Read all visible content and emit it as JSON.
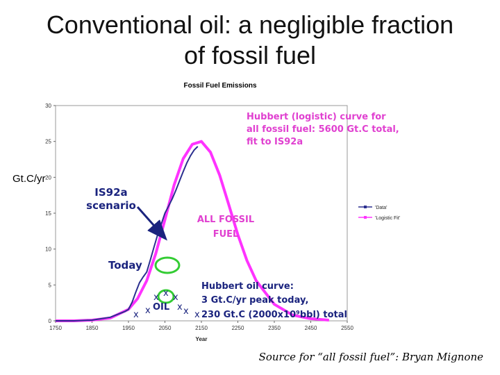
{
  "slide": {
    "title_line1": "Conventional oil: a negligible fraction",
    "title_line2": "of fossil fuel",
    "source": "Source for “all fossil fuel”: Bryan Mignone"
  },
  "chart_data": {
    "type": "line",
    "title": "Fossil Fuel Emissions",
    "xlabel": "Year",
    "ylabel": "Gt.C/yr",
    "xlim": [
      1750,
      2550
    ],
    "ylim": [
      0,
      30
    ],
    "x_ticks": [
      1750,
      1850,
      1950,
      2050,
      2150,
      2250,
      2350,
      2450,
      2550
    ],
    "y_ticks": [
      0,
      5,
      10,
      15,
      20,
      25,
      30
    ],
    "grid": false,
    "legend_position": "right",
    "series": [
      {
        "name": "'Data'",
        "color": "#2b2f8f",
        "x": [
          1750,
          1800,
          1850,
          1900,
          1920,
          1940,
          1950,
          1960,
          1970,
          1980,
          1990,
          2000,
          2010,
          2020,
          2030,
          2040,
          2050,
          2060,
          2070,
          2080,
          2090,
          2100,
          2110,
          2120,
          2130,
          2140
        ],
        "y": [
          0,
          0,
          0.1,
          0.5,
          0.9,
          1.3,
          1.6,
          2.6,
          4.0,
          5.3,
          6.1,
          6.8,
          8.5,
          10.3,
          12.0,
          13.5,
          15.0,
          16.0,
          17.0,
          18.2,
          19.5,
          20.8,
          22.0,
          23.0,
          23.8,
          24.3
        ]
      },
      {
        "name": "'Logistic Fit'",
        "color": "#ff33ff",
        "x": [
          1750,
          1800,
          1850,
          1900,
          1950,
          1975,
          2000,
          2025,
          2050,
          2075,
          2100,
          2125,
          2150,
          2175,
          2200,
          2225,
          2250,
          2275,
          2300,
          2350,
          2400,
          2450,
          2500
        ],
        "y": [
          0,
          0,
          0.1,
          0.4,
          1.6,
          3.1,
          5.6,
          9.4,
          14.1,
          18.9,
          22.6,
          24.6,
          25.0,
          23.5,
          20.3,
          16.2,
          12.0,
          8.4,
          5.6,
          2.3,
          0.8,
          0.3,
          0.1
        ]
      }
    ],
    "annotations": {
      "hubbert_all_line1": "Hubbert (logistic) curve for",
      "hubbert_all_line2": "all fossil fuel: 5600 Gt.C total,",
      "hubbert_all_line3": "fit to IS92a",
      "is92a_line1": "IS92a",
      "is92a_line2": "scenario",
      "all_fossil_line1": "ALL FOSSIL",
      "all_fossil_line2": "FUEL",
      "today": "Today",
      "hubbert_oil_line1": "Hubbert oil curve:",
      "hubbert_oil_line2": "3 Gt.C/yr  peak today,",
      "hubbert_oil_line3": "230 Gt.C (2000x10⁹bbl) total",
      "oil_label": "OIL",
      "x_mark": "x"
    },
    "colors": {
      "annotation_magenta": "#e040d0",
      "annotation_blue": "#1a237e",
      "circle_green": "#33cc33",
      "plot_background": "#ffffff",
      "frame": "#999999"
    }
  }
}
